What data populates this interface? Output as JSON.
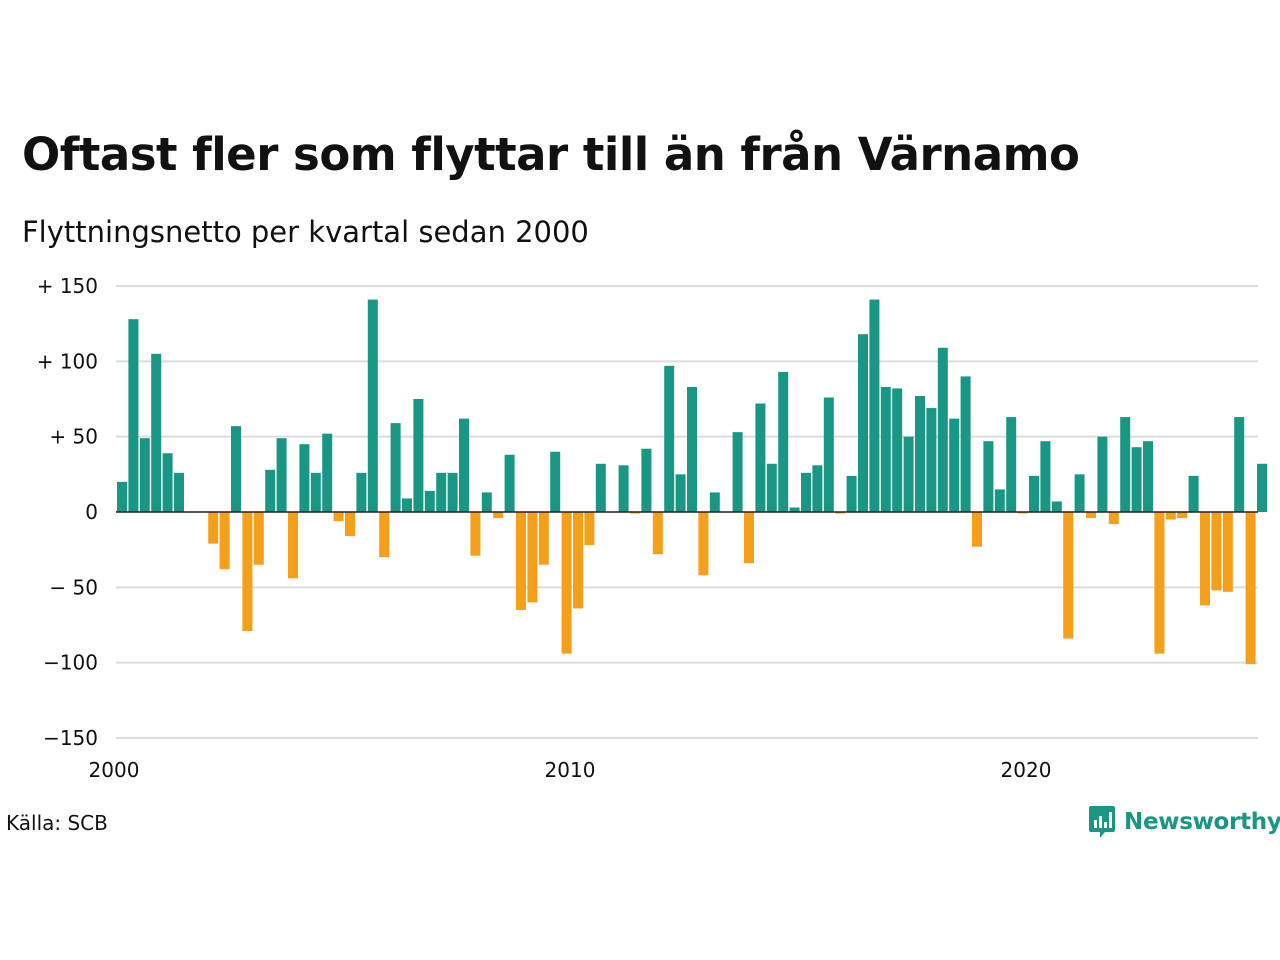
{
  "title": "Oftast fler som flyttar till än från Värnamo",
  "subtitle": "Flyttningsnetto per kvartal sedan 2000",
  "source": "Källa: SCB",
  "brand": {
    "name": "Newsworthy",
    "icon": "newsworthy-logo-icon"
  },
  "colors": {
    "positive": "#1a9784",
    "negative": "#f5a01a",
    "grid": "#dddddd",
    "zero": "#222222"
  },
  "chart_data": {
    "type": "bar",
    "title": "Oftast fler som flyttar till än från Värnamo",
    "subtitle": "Flyttningsnetto per kvartal sedan 2000",
    "xlabel": "",
    "ylabel": "",
    "ylim": [
      -150,
      150
    ],
    "y_ticks": [
      150,
      100,
      50,
      0,
      -50,
      -100,
      -150
    ],
    "y_tick_labels": [
      "+ 150",
      "+ 100",
      "+  50",
      "0",
      "− 50",
      "−100",
      "−150"
    ],
    "x_ticks": [
      2000,
      2010,
      2020
    ],
    "x_tick_labels": [
      "2000",
      "2010",
      "2020"
    ],
    "grid": true,
    "series": [
      {
        "values": [
          20,
          128,
          49,
          105,
          39,
          26,
          0,
          0,
          -21,
          -38,
          57,
          -79,
          -35,
          28,
          49,
          -44,
          45,
          26,
          52,
          -6,
          -16,
          26,
          141,
          -30,
          59,
          9,
          75,
          14,
          26,
          26,
          62,
          -29,
          13,
          -4,
          38,
          -65,
          -60,
          -35,
          40,
          -94,
          -64,
          -22,
          32,
          0,
          31,
          -1,
          42,
          -28,
          97,
          25,
          83,
          -42,
          13,
          0,
          53,
          -34,
          72,
          32,
          93,
          3,
          26,
          31,
          76,
          -1,
          24,
          118,
          141,
          83,
          82,
          50,
          77,
          69,
          109,
          62,
          90,
          -23,
          47,
          15,
          63,
          -1,
          24,
          47,
          7,
          -84,
          25,
          -4,
          50,
          -8,
          63,
          43,
          47,
          -94,
          -5,
          -4,
          24,
          -62,
          -52,
          -53,
          63,
          -101,
          32
        ]
      }
    ]
  }
}
